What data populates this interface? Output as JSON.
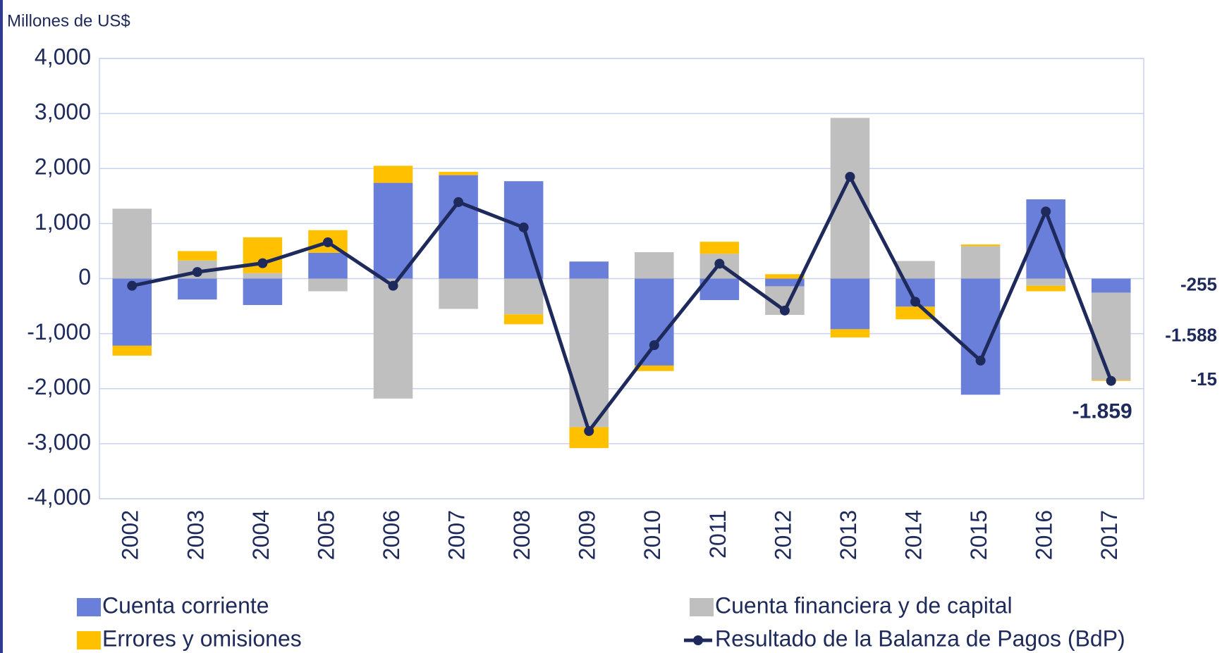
{
  "chart_data": {
    "type": "bar",
    "subtitle": "Millones de US$",
    "categories": [
      "2002",
      "2003",
      "2004",
      "2005",
      "2006",
      "2007",
      "2008",
      "2009",
      "2010",
      "2011",
      "2012",
      "2013",
      "2014",
      "2015",
      "2016",
      "2017"
    ],
    "series": [
      {
        "name": "Cuenta corriente",
        "color": "#6a7fd9",
        "values": [
          -1220,
          -380,
          -480,
          470,
          1740,
          1880,
          1770,
          310,
          -1580,
          -390,
          -140,
          -920,
          -510,
          -2110,
          1440,
          -255
        ],
        "value_labels": [
          null,
          null,
          null,
          null,
          null,
          null,
          null,
          null,
          null,
          null,
          null,
          null,
          null,
          null,
          null,
          "-255"
        ]
      },
      {
        "name": "Cuenta financiera y de capital",
        "color": "#bfbfbf",
        "values": [
          1270,
          330,
          100,
          -230,
          -2180,
          -550,
          -650,
          -2700,
          480,
          450,
          -520,
          2920,
          320,
          590,
          -130,
          -1588
        ],
        "value_labels": [
          null,
          null,
          null,
          null,
          null,
          null,
          null,
          null,
          null,
          null,
          null,
          null,
          null,
          null,
          null,
          "-1.588"
        ]
      },
      {
        "name": "Errores y omisiones",
        "color": "#ffc000",
        "values": [
          -180,
          170,
          650,
          410,
          310,
          60,
          -180,
          -380,
          -100,
          220,
          80,
          -150,
          -230,
          30,
          -100,
          -15
        ],
        "value_labels": [
          null,
          null,
          null,
          null,
          null,
          null,
          null,
          null,
          null,
          null,
          null,
          null,
          null,
          null,
          null,
          "-15"
        ]
      },
      {
        "name": "Resultado de la Balanza de Pagos (BdP)",
        "color": "#1f2a5c",
        "type": "line",
        "values": [
          -130,
          120,
          280,
          660,
          -130,
          1390,
          930,
          -2770,
          -1210,
          270,
          -580,
          1850,
          -420,
          -1490,
          1220,
          -1859
        ],
        "value_labels": [
          null,
          null,
          null,
          null,
          null,
          null,
          null,
          null,
          null,
          null,
          null,
          null,
          null,
          null,
          null,
          "-1.859"
        ]
      }
    ],
    "ylim": [
      -4000,
      4000
    ],
    "yticks": [
      {
        "value": 4000,
        "label": "4,000"
      },
      {
        "value": 3000,
        "label": "3,000"
      },
      {
        "value": 2000,
        "label": "2,000"
      },
      {
        "value": 1000,
        "label": "1,000"
      },
      0,
      {
        "value": -1000,
        "label": "-1,000"
      },
      {
        "value": -2000,
        "label": "-2,000"
      },
      {
        "value": -3000,
        "label": "-3,000"
      },
      {
        "value": -4000,
        "label": "-4,000"
      }
    ],
    "grid": true,
    "stacked": true,
    "legend": "bottom"
  }
}
